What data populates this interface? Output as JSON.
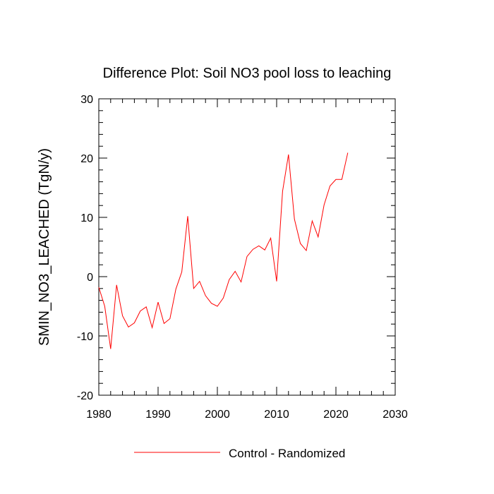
{
  "chart_data": {
    "type": "line",
    "title": "Difference Plot: Soil NO3 pool loss to leaching",
    "xlabel": "",
    "ylabel": "SMIN_NO3_LEACHED  (TgN/y)",
    "xlim": [
      1980,
      2030
    ],
    "ylim": [
      -20,
      30
    ],
    "xticks": [
      1980,
      1990,
      2000,
      2010,
      2020,
      2030
    ],
    "yticks": [
      -20,
      -10,
      0,
      10,
      20,
      30
    ],
    "grid": false,
    "legend": "bottom-center",
    "series": [
      {
        "name": "Control - Randomized",
        "color": "#ff0000",
        "x": [
          1980,
          1981,
          1982,
          1983,
          1984,
          1985,
          1986,
          1987,
          1988,
          1989,
          1990,
          1991,
          1992,
          1993,
          1994,
          1995,
          1996,
          1997,
          1998,
          1999,
          2000,
          2001,
          2002,
          2003,
          2004,
          2005,
          2006,
          2007,
          2008,
          2009,
          2010,
          2011,
          2012,
          2013,
          2014,
          2015,
          2016,
          2017,
          2018,
          2019,
          2020,
          2021,
          2022
        ],
        "y": [
          -1.8,
          -5.0,
          -12.2,
          -1.4,
          -6.6,
          -8.5,
          -7.8,
          -5.8,
          -5.1,
          -8.6,
          -4.3,
          -7.9,
          -7.1,
          -2.1,
          0.8,
          10.2,
          -2.0,
          -0.8,
          -3.2,
          -4.5,
          -5.0,
          -3.6,
          -0.5,
          0.9,
          -0.9,
          3.4,
          4.6,
          5.2,
          4.5,
          6.5,
          -0.8,
          14.4,
          20.6,
          9.7,
          5.6,
          4.4,
          9.4,
          6.7,
          12.1,
          15.3,
          16.4,
          16.4,
          20.9
        ]
      }
    ]
  }
}
